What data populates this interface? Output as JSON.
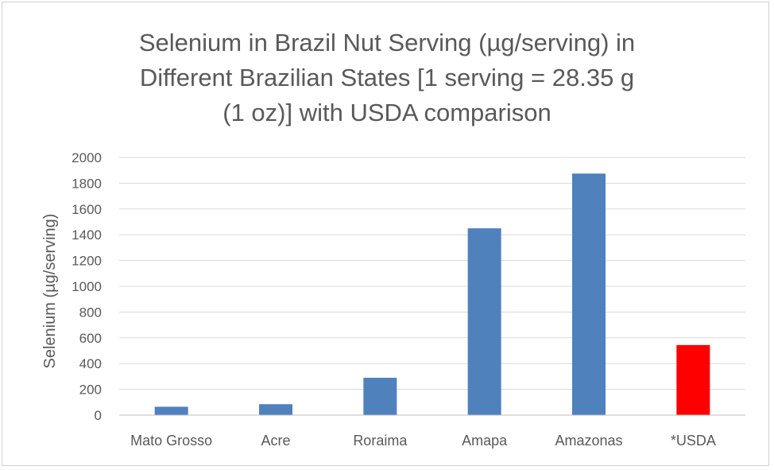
{
  "chart_data": {
    "type": "bar",
    "title_lines": [
      "Selenium in Brazil Nut Serving (µg/serving) in",
      "Different Brazilian States [1 serving = 28.35 g",
      "(1 oz)] with USDA comparison"
    ],
    "xlabel": "",
    "ylabel": "Selenium (µg/serving)",
    "categories": [
      "Mato Grosso",
      "Acre",
      "Roraima",
      "Amapa",
      "Amazonas",
      "*USDA"
    ],
    "values": [
      65,
      85,
      290,
      1450,
      1875,
      544
    ],
    "bar_colors": [
      "#4f81bd",
      "#4f81bd",
      "#4f81bd",
      "#4f81bd",
      "#4f81bd",
      "#ff0000"
    ],
    "ylim": [
      0,
      2000
    ],
    "yticks": [
      0,
      200,
      400,
      600,
      800,
      1000,
      1200,
      1400,
      1600,
      1800,
      2000
    ],
    "grid": true,
    "legend": "none"
  },
  "colors": {
    "text": "#595959",
    "grid": "#d9d9d9",
    "axis": "#bfbfbf"
  }
}
